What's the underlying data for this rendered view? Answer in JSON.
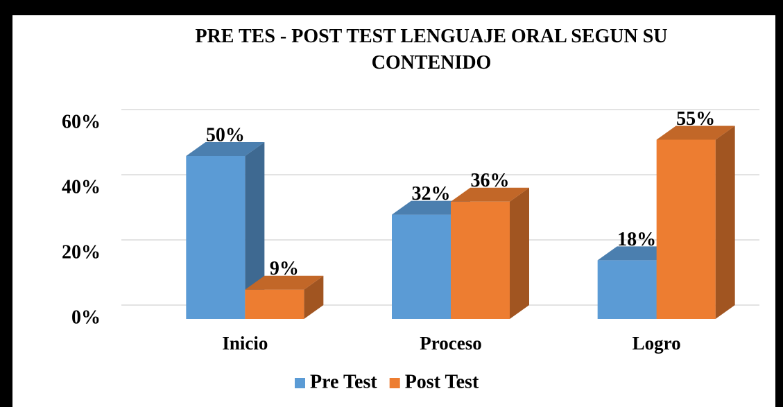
{
  "chart_data": {
    "type": "bar3d",
    "title": "PRE TES - POST TEST LENGUAJE ORAL SEGUN SU CONTENIDO",
    "categories": [
      "Inicio",
      "Proceso",
      "Logro"
    ],
    "series": [
      {
        "name": "Pre Test",
        "color": "#5b9bd5",
        "values": [
          50,
          32,
          18
        ],
        "value_labels": [
          "50%",
          "32%",
          "18%"
        ]
      },
      {
        "name": "Post Test",
        "color": "#ed7d31",
        "values": [
          9,
          36,
          55
        ],
        "value_labels": [
          "9%",
          "36%",
          "55%"
        ]
      }
    ],
    "ylim": [
      0,
      60
    ],
    "yticks": [
      {
        "value": 0,
        "label": "0%"
      },
      {
        "value": 20,
        "label": "20%"
      },
      {
        "value": 40,
        "label": "40%"
      },
      {
        "value": 60,
        "label": "60%"
      }
    ],
    "grid": true,
    "legend": "bottom"
  }
}
